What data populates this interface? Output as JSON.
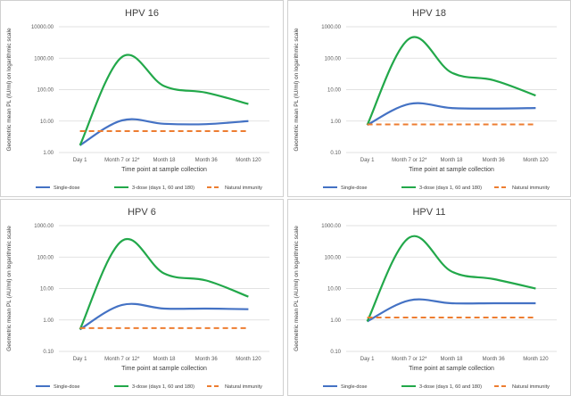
{
  "colors": {
    "single_dose": "#4472c4",
    "three_dose": "#22a84a",
    "natural_immunity": "#ed7d31",
    "grid": "#d9d9d9",
    "border": "#d0d0d0"
  },
  "chart_data": [
    {
      "type": "line",
      "title": "HPV 16",
      "xlabel": "Time point at sample collection",
      "ylabel": "Geometric mean PL (IU/ml) on logarithmic scale",
      "categories": [
        "Day 1",
        "Month 7 or 12*",
        "Month 18",
        "Month 36",
        "Month 120"
      ],
      "yscale": "log",
      "ylim": [
        1,
        10000
      ],
      "ytick_labels": [
        "1.00",
        "10.00",
        "100.00",
        "1000.00",
        "10000.00"
      ],
      "series": [
        {
          "name": "Single-dose",
          "values": [
            1.7,
            10.5,
            8.2,
            8.0,
            10.0
          ]
        },
        {
          "name": "3-dose (days 1, 60 and 180)",
          "values": [
            1.7,
            1100,
            130,
            80,
            35
          ]
        },
        {
          "name": "Natural immunity",
          "values": [
            4.8,
            4.8,
            4.8,
            4.8,
            4.8
          ]
        }
      ]
    },
    {
      "type": "line",
      "title": "HPV 18",
      "xlabel": "Time point at sample collection",
      "ylabel": "Geometric mean PL (IU/ml) on logarithmic scale",
      "categories": [
        "Day 1",
        "Month 7 or 12*",
        "Month 18",
        "Month 36",
        "Month 120"
      ],
      "yscale": "log",
      "ylim": [
        0.1,
        1000
      ],
      "ytick_labels": [
        "0.10",
        "1.00",
        "10.00",
        "100.00",
        "1000.00"
      ],
      "series": [
        {
          "name": "Single-dose",
          "values": [
            0.75,
            3.5,
            2.6,
            2.5,
            2.6
          ]
        },
        {
          "name": "3-dose (days 1, 60 and 180)",
          "values": [
            0.75,
            420,
            35,
            20,
            6.5
          ]
        },
        {
          "name": "Natural immunity",
          "values": [
            0.78,
            0.78,
            0.78,
            0.78,
            0.78
          ]
        }
      ]
    },
    {
      "type": "line",
      "title": "HPV 6",
      "xlabel": "Time point at sample collection",
      "ylabel": "Geometric mean PL (AU/ml) on logarithmic scale",
      "categories": [
        "Day 1",
        "Month 7 or 12*",
        "Month 18",
        "Month 36",
        "Month 120"
      ],
      "yscale": "log",
      "ylim": [
        0.1,
        1000
      ],
      "ytick_labels": [
        "0.10",
        "1.00",
        "10.00",
        "100.00",
        "1000.00"
      ],
      "series": [
        {
          "name": "Single-dose",
          "values": [
            0.5,
            3.0,
            2.3,
            2.3,
            2.2
          ]
        },
        {
          "name": "3-dose (days 1, 60 and 180)",
          "values": [
            0.5,
            330,
            30,
            18,
            5.5
          ]
        },
        {
          "name": "Natural immunity",
          "values": [
            0.55,
            0.55,
            0.55,
            0.55,
            0.55
          ]
        }
      ]
    },
    {
      "type": "line",
      "title": "HPV 11",
      "xlabel": "Time point at sample collection",
      "ylabel": "Geometric mean PL (AU/ml) on logarithmic scale",
      "categories": [
        "Day 1",
        "Month 7 or 12*",
        "Month 18",
        "Month 36",
        "Month 120"
      ],
      "yscale": "log",
      "ylim": [
        0.1,
        1000
      ],
      "ytick_labels": [
        "0.10",
        "1.00",
        "10.00",
        "100.00",
        "1000.00"
      ],
      "series": [
        {
          "name": "Single-dose",
          "values": [
            0.9,
            4.2,
            3.4,
            3.4,
            3.4
          ]
        },
        {
          "name": "3-dose (days 1, 60 and 180)",
          "values": [
            0.9,
            420,
            35,
            20,
            10
          ]
        },
        {
          "name": "Natural immunity",
          "values": [
            1.2,
            1.2,
            1.2,
            1.2,
            1.2
          ]
        }
      ]
    }
  ]
}
